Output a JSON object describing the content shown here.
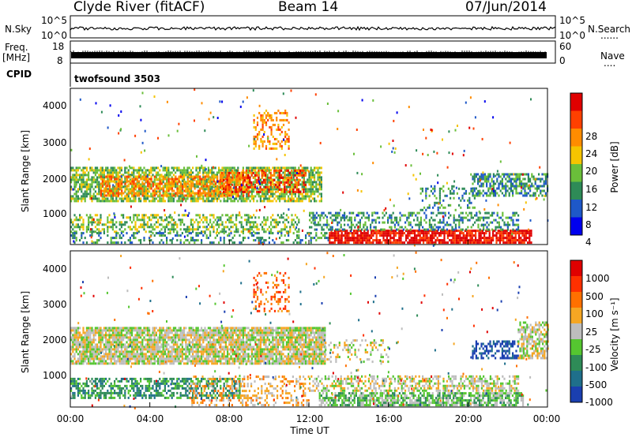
{
  "header": {
    "station": "Clyde River (fitACF)",
    "beam": "Beam 14",
    "date": "07/Jun/2014"
  },
  "strips": {
    "nsky_label": "N.Sky",
    "nsky_ticks": [
      "10^5",
      "10^0"
    ],
    "nsearch_label": "N.Search",
    "nsearch_ticks": [
      "10^5",
      "10^0"
    ],
    "nsearch_marker": "......",
    "freq_label": "Freq.",
    "freq_unit": "[MHz]",
    "freq_ticks": [
      "18",
      "8"
    ],
    "nave_label": "Nave",
    "nave_ticks": [
      "60",
      "0"
    ],
    "nave_marker": "....",
    "cpid_label": "CPID",
    "cpid_value": "twofsound 3503"
  },
  "chart_data": [
    {
      "type": "heatmap",
      "name": "power-panel",
      "ylabel": "Slant Range [km]",
      "ylim": [
        180,
        4500
      ],
      "yticks": [
        "4000",
        "3000",
        "2000",
        "1000"
      ],
      "xlabel": "Time UT",
      "xticks": [
        "00:00",
        "04:00",
        "08:00",
        "12:00",
        "16:00",
        "20:00",
        "00:00"
      ],
      "colorbar": {
        "label": "Power [dB]",
        "ticks": [
          "28",
          "24",
          "20",
          "16",
          "12",
          "8",
          "4"
        ],
        "colors": [
          "#0000ee",
          "#1e58c8",
          "#2e8b57",
          "#6abf3a",
          "#f5c400",
          "#ff8c00",
          "#ff4000",
          "#e00000"
        ]
      },
      "regions": [
        {
          "t0": 0.0,
          "t1": 12.6,
          "r0": 1350,
          "r1": 2300,
          "level": 3,
          "dense": 0.7
        },
        {
          "t0": 1.5,
          "t1": 9.0,
          "r0": 1500,
          "r1": 2050,
          "level": 5,
          "dense": 0.55
        },
        {
          "t0": 7.5,
          "t1": 11.8,
          "r0": 1600,
          "r1": 2200,
          "level": 6,
          "dense": 0.5
        },
        {
          "t0": 0.0,
          "t1": 11.5,
          "r0": 500,
          "r1": 1000,
          "level": 3,
          "dense": 0.45
        },
        {
          "t0": 0.0,
          "t1": 13.0,
          "r0": 200,
          "r1": 480,
          "level": 2,
          "dense": 0.35
        },
        {
          "t0": 9.2,
          "t1": 11.0,
          "r0": 2800,
          "r1": 3900,
          "level": 5,
          "dense": 0.3
        },
        {
          "t0": 13.0,
          "t1": 23.2,
          "r0": 200,
          "r1": 560,
          "level": 7,
          "dense": 0.8
        },
        {
          "t0": 12.0,
          "t1": 22.5,
          "r0": 560,
          "r1": 1050,
          "level": 2,
          "dense": 0.45
        },
        {
          "t0": 20.2,
          "t1": 24.0,
          "r0": 1500,
          "r1": 2100,
          "level": 2,
          "dense": 0.6
        },
        {
          "t0": 17.5,
          "t1": 20.5,
          "r0": 1100,
          "r1": 1800,
          "level": 2,
          "dense": 0.25
        }
      ]
    },
    {
      "type": "heatmap",
      "name": "velocity-panel",
      "ylabel": "Slant Range [km]",
      "ylim": [
        180,
        4500
      ],
      "yticks": [
        "4000",
        "3000",
        "2000",
        "1000"
      ],
      "xlabel": "Time UT",
      "xticks": [
        "00:00",
        "04:00",
        "08:00",
        "12:00",
        "16:00",
        "20:00",
        "00:00"
      ],
      "colorbar": {
        "label": "Velocity [m s⁻¹]",
        "ticks": [
          "1000",
          "500",
          "100",
          "25",
          "-25",
          "-100",
          "-500",
          "-1000"
        ],
        "colors": [
          "#1a3fb0",
          "#1f6f8b",
          "#2e8b57",
          "#55c630",
          "#bdbdbd",
          "#f5a623",
          "#ff7000",
          "#ff3000",
          "#e00000"
        ]
      },
      "regions": [
        {
          "t0": 0.0,
          "t1": 12.8,
          "r0": 1350,
          "r1": 2350,
          "level": 4,
          "dense": 0.85
        },
        {
          "t0": 12.8,
          "t1": 16.0,
          "r0": 1400,
          "r1": 2000,
          "level": 4,
          "dense": 0.25
        },
        {
          "t0": 0.0,
          "t1": 8.5,
          "r0": 400,
          "r1": 950,
          "level": 2,
          "dense": 0.55
        },
        {
          "t0": 6.0,
          "t1": 12.0,
          "r0": 200,
          "r1": 1000,
          "level": 5,
          "dense": 0.3
        },
        {
          "t0": 9.2,
          "t1": 11.0,
          "r0": 2800,
          "r1": 3900,
          "level": 6,
          "dense": 0.3
        },
        {
          "t0": 12.5,
          "t1": 22.8,
          "r0": 200,
          "r1": 560,
          "level": 3,
          "dense": 0.75
        },
        {
          "t0": 12.0,
          "t1": 22.5,
          "r0": 600,
          "r1": 1050,
          "level": 4,
          "dense": 0.5
        },
        {
          "t0": 20.2,
          "t1": 22.5,
          "r0": 1500,
          "r1": 2000,
          "level": 0,
          "dense": 0.55
        },
        {
          "t0": 22.5,
          "t1": 24.0,
          "r0": 1500,
          "r1": 2500,
          "level": 4,
          "dense": 0.6
        }
      ]
    }
  ]
}
